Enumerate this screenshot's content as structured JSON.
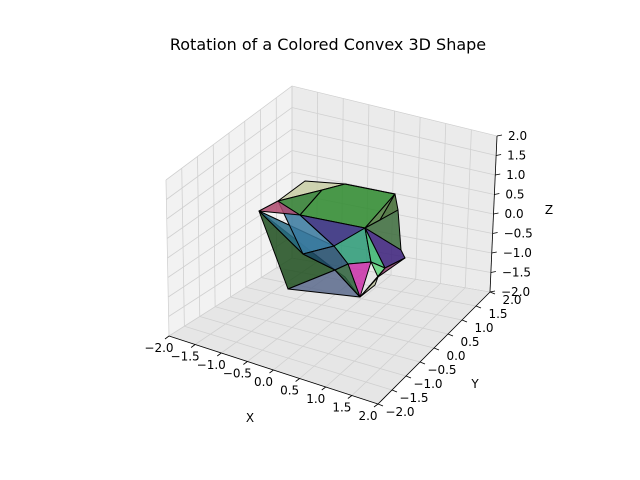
{
  "chart_data": {
    "type": "surface3d",
    "title": "Rotation of a Colored Convex 3D Shape",
    "xlabel": "X",
    "ylabel": "Y",
    "zlabel": "Z",
    "xlim": [
      -2.0,
      2.0
    ],
    "ylim": [
      -2.0,
      2.0
    ],
    "zlim": [
      -2.0,
      2.0
    ],
    "x_ticks": [
      "−2.0",
      "−1.5",
      "−1.0",
      "−0.5",
      "0.0",
      "0.5",
      "1.0",
      "1.5",
      "2.0"
    ],
    "y_ticks": [
      "−2.0",
      "−1.5",
      "−1.0",
      "−0.5",
      "0.0",
      "0.5",
      "1.0",
      "1.5",
      "2.0"
    ],
    "z_ticks": [
      "−2.0",
      "−1.5",
      "−1.0",
      "−0.5",
      "0.0",
      "0.5",
      "1.0",
      "1.5",
      "2.0"
    ],
    "grid": true,
    "edge_color": "#000000",
    "pane_color": "#f2f2f2",
    "grid_color": "#d0d0d0"
  }
}
